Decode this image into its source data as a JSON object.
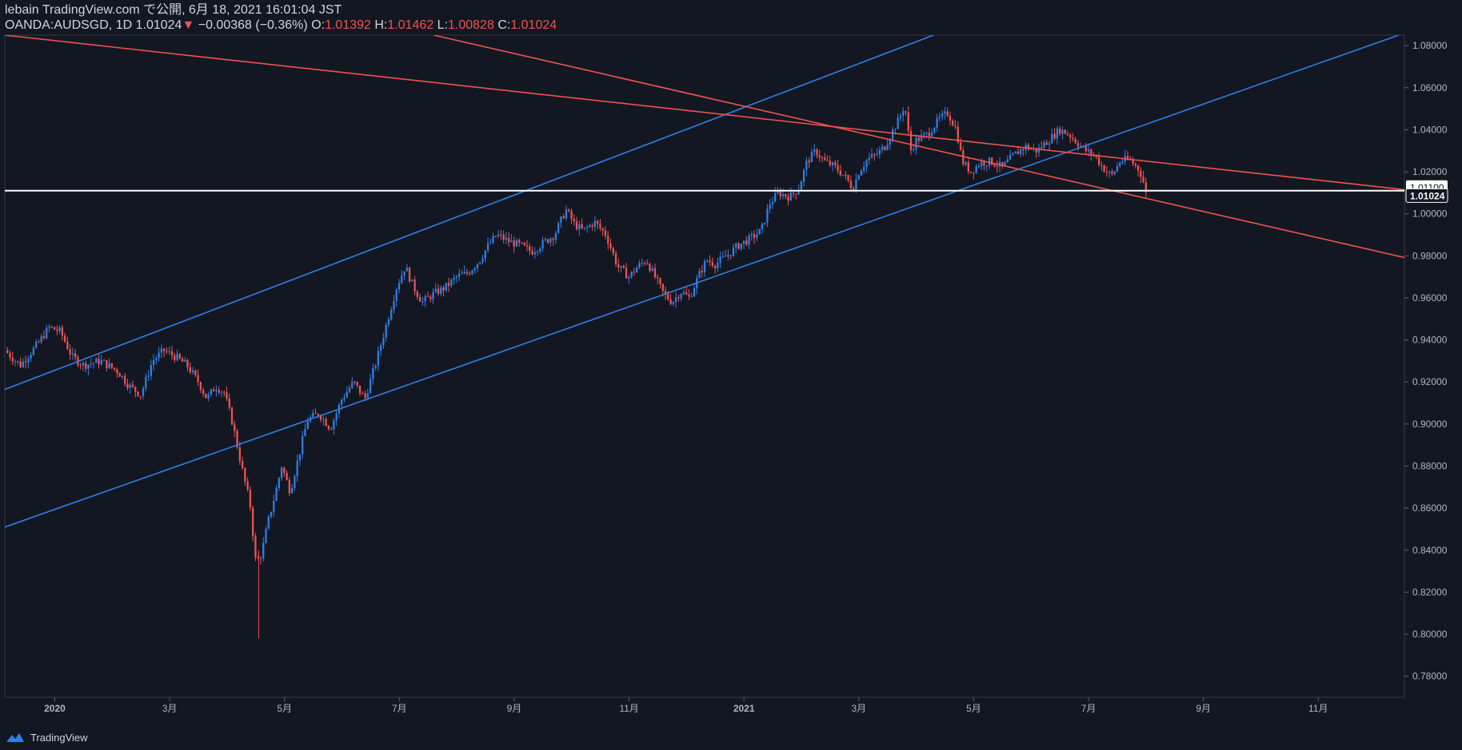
{
  "header": {
    "published": "lebain TradingView.com で公開, 6月 18, 2021 16:01:04 JST",
    "symbol": "OANDA:AUDSGD, 1D",
    "last": "1.01024",
    "change": "−0.00368 (−0.36%)",
    "o_label": "O:",
    "o_value": "1.01392",
    "h_label": "H:",
    "h_value": "1.01462",
    "l_label": "L:",
    "l_value": "1.00828",
    "c_label": "C:",
    "c_value": "1.01024"
  },
  "footer": {
    "brand": "TradingView",
    "logo_icon": "tradingview-logo-icon"
  },
  "colors": {
    "bg": "#131722",
    "up": "#2f7fe6",
    "down": "#ef5350",
    "grid": "#2a2e39",
    "channel_up": "#2f7fe6",
    "channel_down": "#ef5350"
  },
  "chart_data": {
    "type": "candlestick",
    "symbol": "OANDA:AUDSGD",
    "interval": "1D",
    "ylim": [
      0.77,
      1.085
    ],
    "y_ticks": [
      "1.08000",
      "1.06000",
      "1.04000",
      "1.02000",
      "1.00000",
      "0.98000",
      "0.96000",
      "0.94000",
      "0.92000",
      "0.90000",
      "0.88000",
      "0.86000",
      "0.84000",
      "0.82000",
      "0.80000",
      "0.78000"
    ],
    "x_ticks": [
      "2020",
      "3月",
      "5月",
      "7月",
      "9月",
      "11月",
      "2021",
      "3月",
      "5月",
      "7月",
      "9月",
      "11月"
    ],
    "x_tick_months": [
      0,
      2,
      4,
      6,
      8,
      10,
      12,
      14,
      16,
      18,
      20,
      22
    ],
    "x_range_months": [
      -0.87,
      23.5
    ],
    "price_path": [
      [
        -0.87,
        0.935
      ],
      [
        -0.6,
        0.928
      ],
      [
        -0.3,
        0.938
      ],
      [
        -0.1,
        0.946
      ],
      [
        0.1,
        0.944
      ],
      [
        0.3,
        0.932
      ],
      [
        0.5,
        0.928
      ],
      [
        0.8,
        0.93
      ],
      [
        1.1,
        0.925
      ],
      [
        1.3,
        0.918
      ],
      [
        1.5,
        0.914
      ],
      [
        1.7,
        0.93
      ],
      [
        1.9,
        0.935
      ],
      [
        2.1,
        0.932
      ],
      [
        2.3,
        0.928
      ],
      [
        2.5,
        0.92
      ],
      [
        2.65,
        0.912
      ],
      [
        2.8,
        0.918
      ],
      [
        2.95,
        0.915
      ],
      [
        3.1,
        0.9
      ],
      [
        3.25,
        0.88
      ],
      [
        3.4,
        0.862
      ],
      [
        3.5,
        0.834
      ],
      [
        3.6,
        0.838
      ],
      [
        3.7,
        0.852
      ],
      [
        3.85,
        0.868
      ],
      [
        3.95,
        0.88
      ],
      [
        4.1,
        0.868
      ],
      [
        4.25,
        0.885
      ],
      [
        4.4,
        0.902
      ],
      [
        4.6,
        0.905
      ],
      [
        4.8,
        0.898
      ],
      [
        5.0,
        0.912
      ],
      [
        5.2,
        0.92
      ],
      [
        5.4,
        0.912
      ],
      [
        5.6,
        0.93
      ],
      [
        5.8,
        0.95
      ],
      [
        5.95,
        0.965
      ],
      [
        6.1,
        0.975
      ],
      [
        6.25,
        0.965
      ],
      [
        6.4,
        0.958
      ],
      [
        6.6,
        0.962
      ],
      [
        6.8,
        0.965
      ],
      [
        7.0,
        0.97
      ],
      [
        7.2,
        0.972
      ],
      [
        7.4,
        0.978
      ],
      [
        7.55,
        0.985
      ],
      [
        7.7,
        0.99
      ],
      [
        7.9,
        0.987
      ],
      [
        8.1,
        0.985
      ],
      [
        8.3,
        0.982
      ],
      [
        8.5,
        0.986
      ],
      [
        8.7,
        0.99
      ],
      [
        8.9,
        1.002
      ],
      [
        9.05,
        0.995
      ],
      [
        9.2,
        0.992
      ],
      [
        9.4,
        0.996
      ],
      [
        9.6,
        0.99
      ],
      [
        9.8,
        0.975
      ],
      [
        10.0,
        0.97
      ],
      [
        10.15,
        0.975
      ],
      [
        10.3,
        0.978
      ],
      [
        10.45,
        0.97
      ],
      [
        10.6,
        0.962
      ],
      [
        10.75,
        0.958
      ],
      [
        10.9,
        0.963
      ],
      [
        11.05,
        0.96
      ],
      [
        11.2,
        0.97
      ],
      [
        11.35,
        0.978
      ],
      [
        11.5,
        0.976
      ],
      [
        11.7,
        0.98
      ],
      [
        11.9,
        0.985
      ],
      [
        12.1,
        0.988
      ],
      [
        12.3,
        0.992
      ],
      [
        12.45,
        1.005
      ],
      [
        12.6,
        1.01
      ],
      [
        12.8,
        1.008
      ],
      [
        12.95,
        1.012
      ],
      [
        13.1,
        1.025
      ],
      [
        13.25,
        1.03
      ],
      [
        13.4,
        1.025
      ],
      [
        13.6,
        1.022
      ],
      [
        13.75,
        1.018
      ],
      [
        13.9,
        1.012
      ],
      [
        14.0,
        1.02
      ],
      [
        14.15,
        1.026
      ],
      [
        14.3,
        1.028
      ],
      [
        14.45,
        1.032
      ],
      [
        14.6,
        1.04
      ],
      [
        14.7,
        1.045
      ],
      [
        14.8,
        1.052
      ],
      [
        14.9,
        1.03
      ],
      [
        15.0,
        1.035
      ],
      [
        15.2,
        1.038
      ],
      [
        15.4,
        1.045
      ],
      [
        15.55,
        1.048
      ],
      [
        15.7,
        1.04
      ],
      [
        15.8,
        1.025
      ],
      [
        15.95,
        1.02
      ],
      [
        16.1,
        1.024
      ],
      [
        16.3,
        1.025
      ],
      [
        16.5,
        1.022
      ],
      [
        16.7,
        1.028
      ],
      [
        16.9,
        1.032
      ],
      [
        17.1,
        1.03
      ],
      [
        17.3,
        1.035
      ],
      [
        17.5,
        1.04
      ],
      [
        17.65,
        1.038
      ],
      [
        17.8,
        1.034
      ],
      [
        17.95,
        1.03
      ],
      [
        18.1,
        1.028
      ],
      [
        18.25,
        1.022
      ],
      [
        18.4,
        1.018
      ],
      [
        18.55,
        1.025
      ],
      [
        18.7,
        1.026
      ],
      [
        18.85,
        1.022
      ],
      [
        18.93,
        1.018
      ],
      [
        19.0,
        1.01
      ]
    ],
    "current_price": "1.01024",
    "marker_price": "1.01100",
    "horizontal_line": 1.011,
    "trendlines": [
      {
        "name": "channel-up-upper",
        "color": "#2f7fe6",
        "p1": [
          -0.87,
          0.9165
        ],
        "p2": [
          15.3,
          1.085
        ]
      },
      {
        "name": "channel-up-lower",
        "color": "#2f7fe6",
        "p1": [
          -0.87,
          0.851
        ],
        "p2": [
          23.4,
          1.085
        ]
      },
      {
        "name": "channel-down-upper",
        "color": "#ef5350",
        "p1": [
          -0.87,
          1.085
        ],
        "p2": [
          23.5,
          1.0115
        ]
      },
      {
        "name": "channel-down-lower",
        "color": "#ef5350",
        "p1": [
          6.6,
          1.085
        ],
        "p2": [
          23.5,
          0.9792
        ]
      }
    ]
  }
}
